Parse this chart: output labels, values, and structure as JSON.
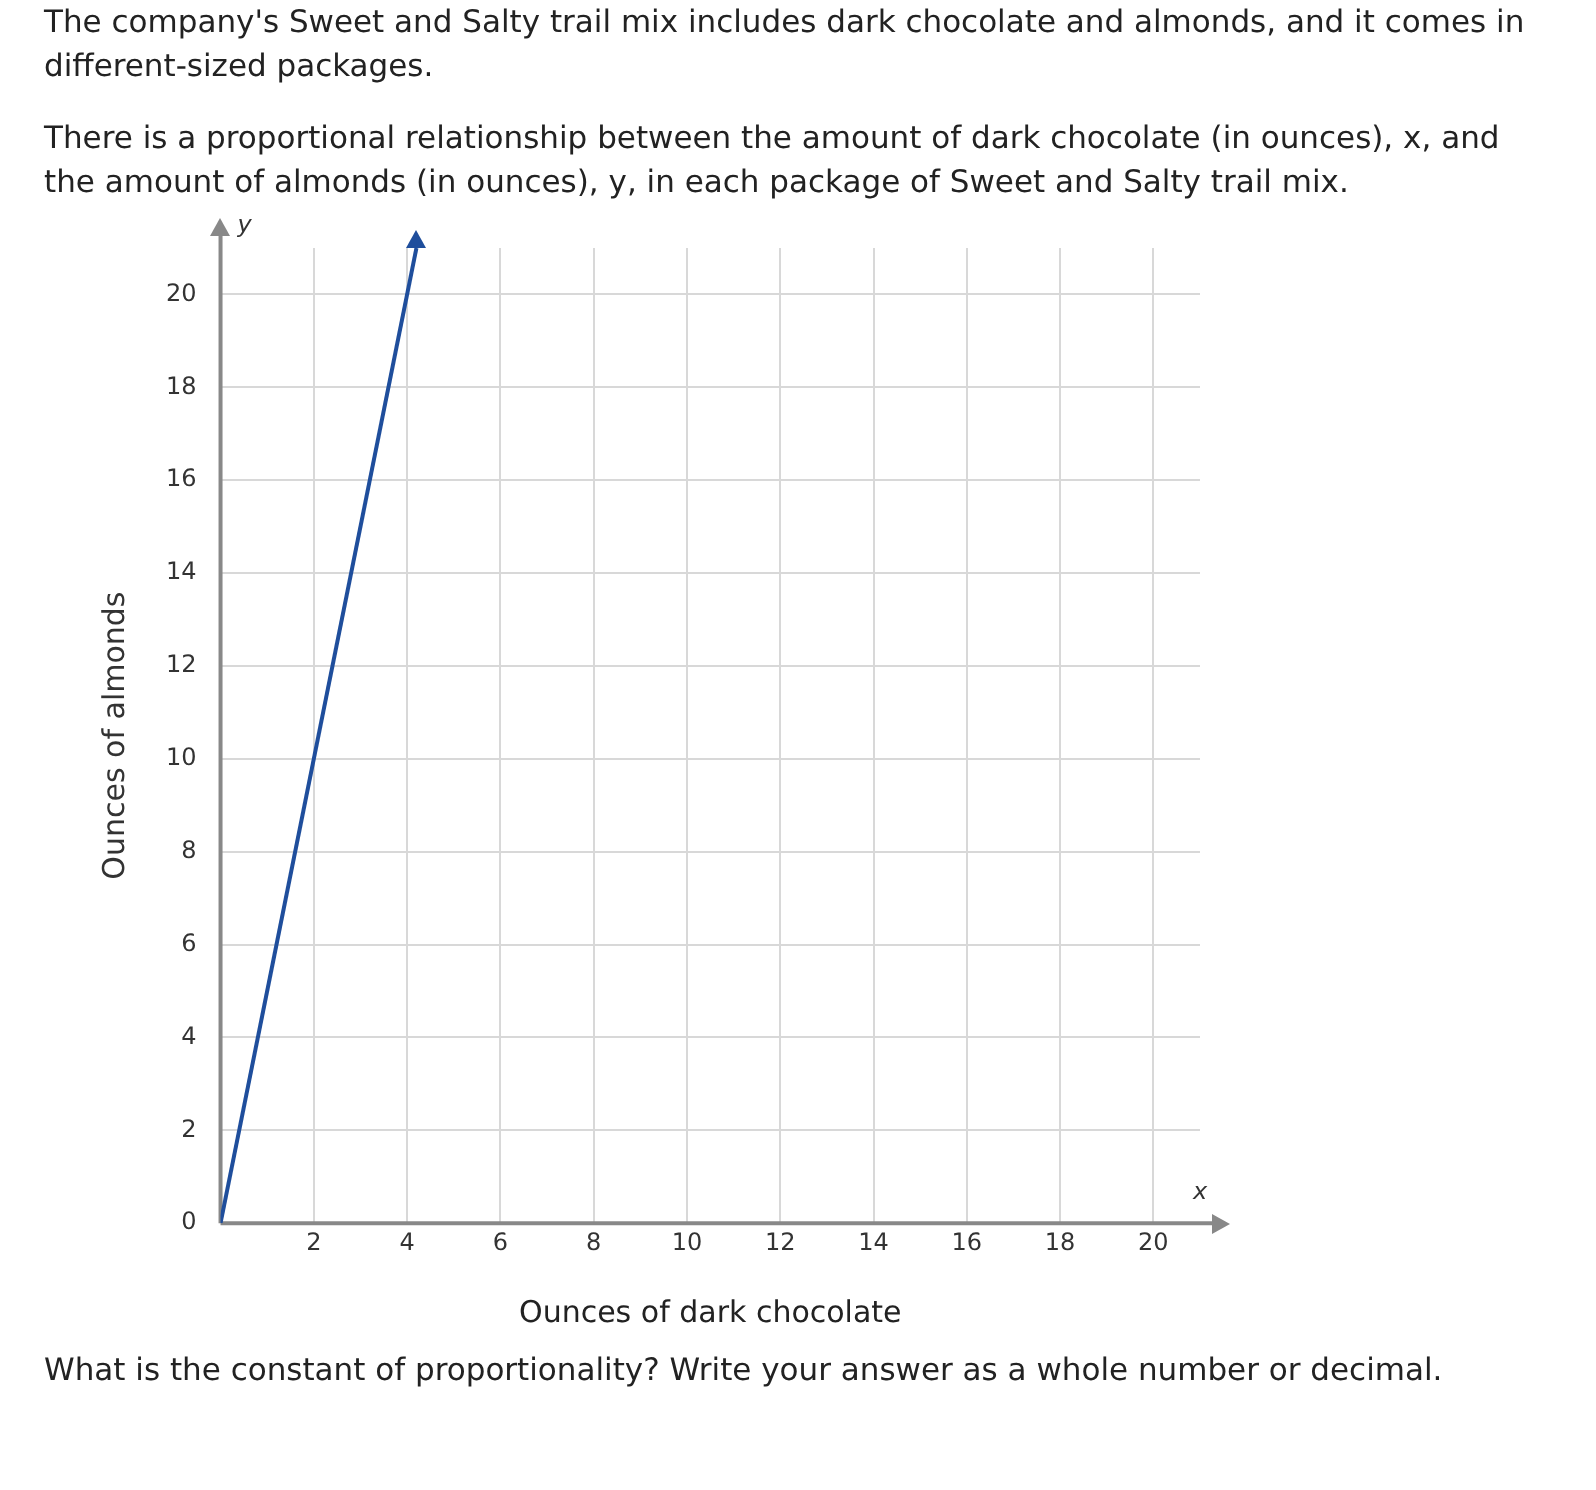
{
  "chart_data": {
    "type": "line",
    "title": "The company's Sweet and Salty trail mix includes dark chocolate and almonds, and it comes in different-sized packages.",
    "subtitle": "There is a proportional relationship between the amount of dark chocolate (in ounces), x, and the amount of almonds (in ounces), y, in each package of Sweet and Salty trail mix.",
    "xlabel": "Ounces of dark chocolate",
    "ylabel": "Ounces of almonds",
    "x": [
      0,
      4.2
    ],
    "series": [
      {
        "color": "#1f4e9c",
        "values": [
          0,
          21
        ]
      }
    ],
    "xlim": [
      0,
      21
    ],
    "ylim": [
      0,
      21
    ],
    "xticks": [
      {
        "value": 0,
        "label": null
      },
      2,
      4,
      6,
      8,
      10,
      12,
      14,
      16,
      18,
      20
    ],
    "yticks": [
      0,
      2,
      4,
      6,
      8,
      10,
      12,
      14,
      16,
      18,
      20
    ],
    "grid": true,
    "marker": "none",
    "line_style": "solid",
    "annotations": [
      "x",
      "y",
      "What is the constant of proportionality? Write your answer as a whole number or decimal."
    ]
  }
}
